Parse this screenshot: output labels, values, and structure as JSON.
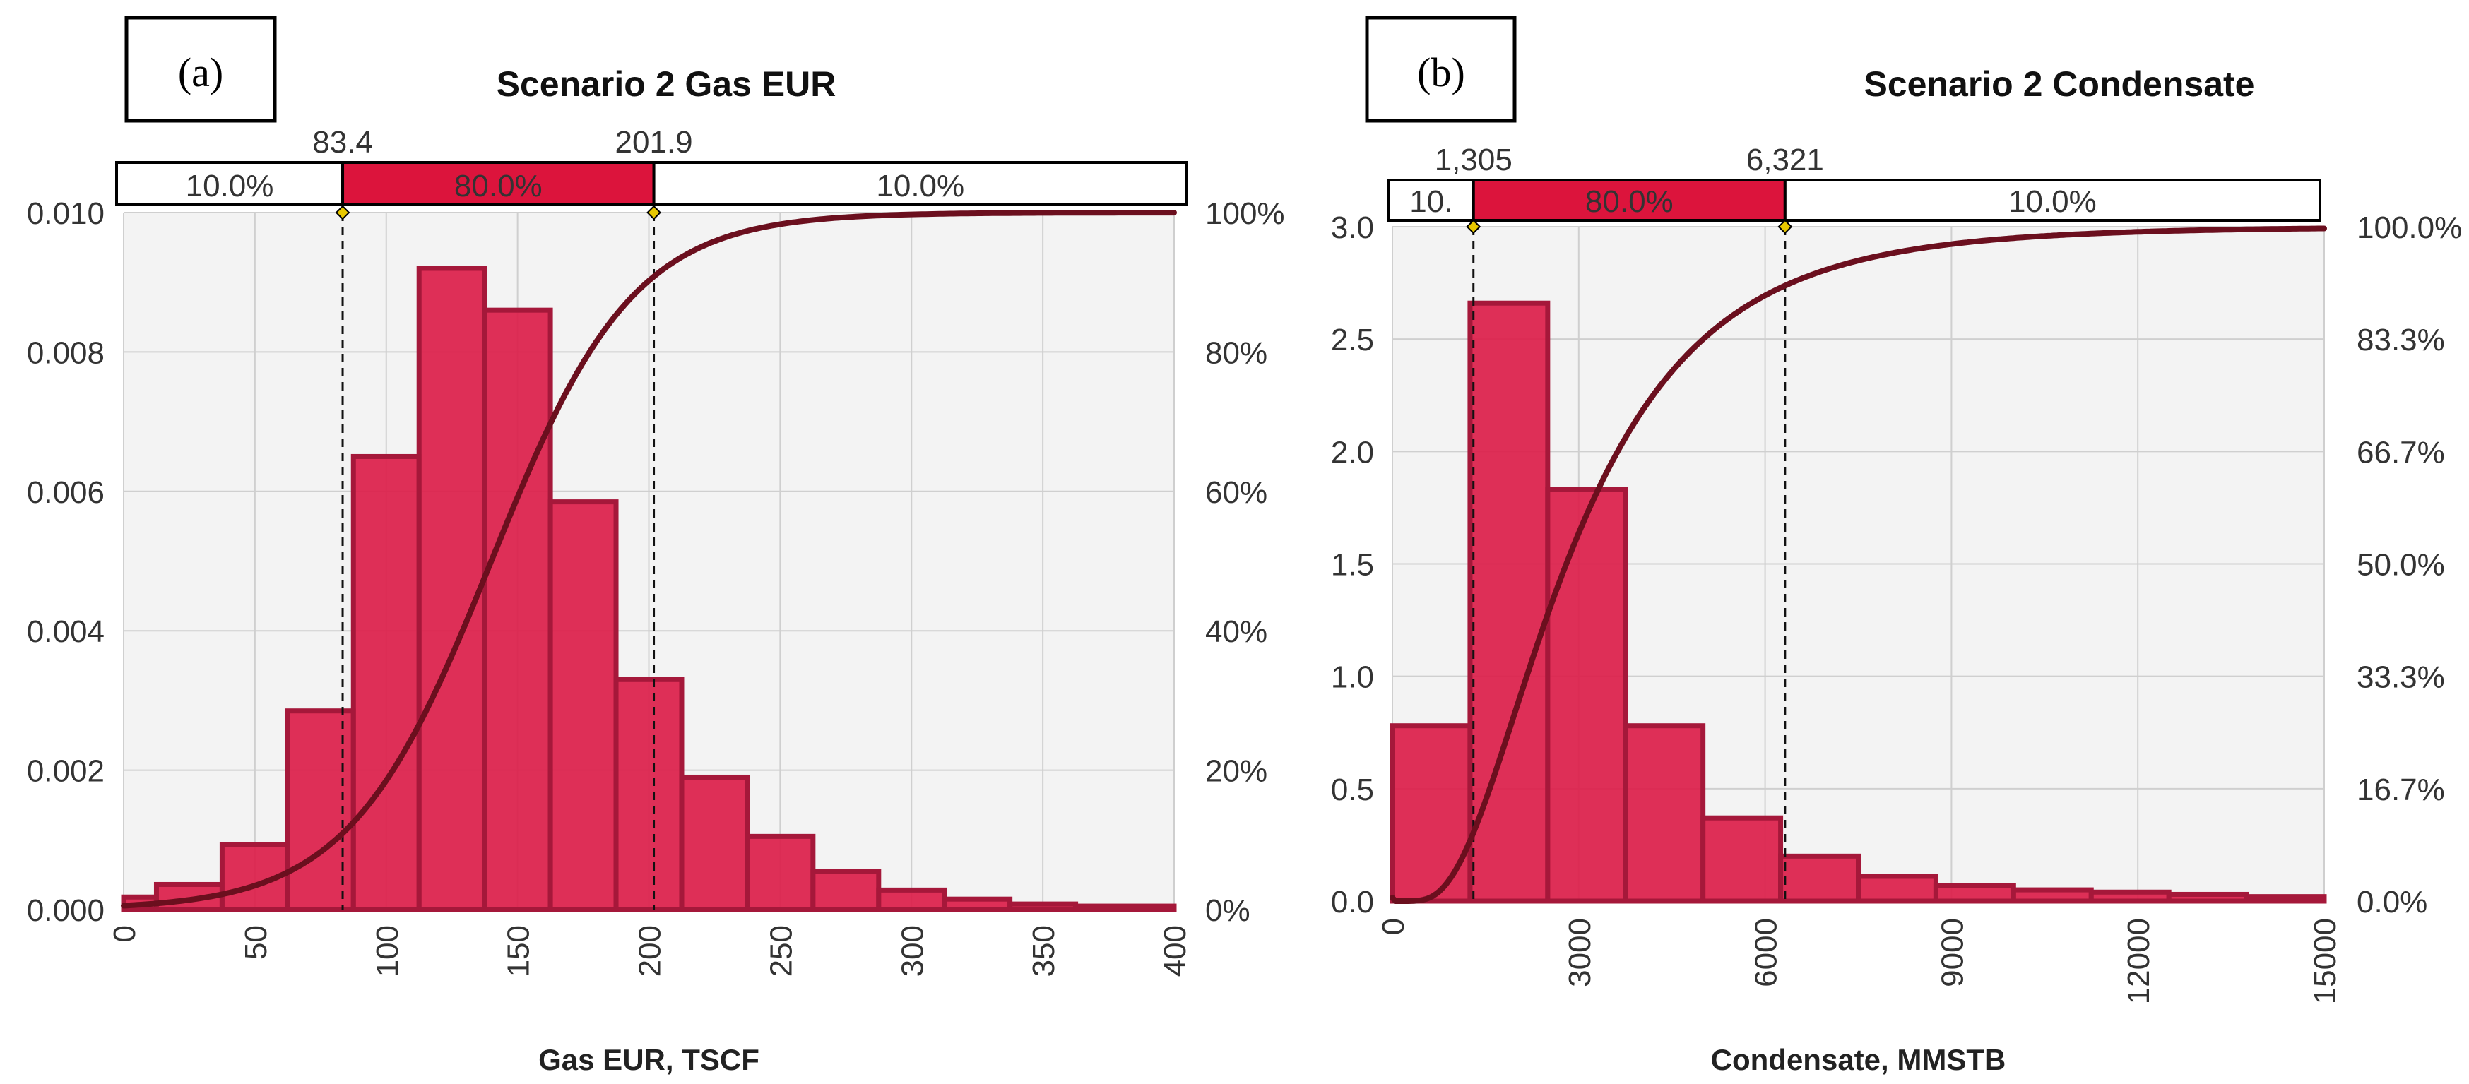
{
  "colors": {
    "bar_fill": "#dc1e4a",
    "bar_edge": "#a5183a",
    "cdf_line": "#6b0f1e",
    "band_fill": "#dc143c",
    "plot_bg": "#f3f3f3",
    "grid": "#cfcfcf",
    "axis_text": "#333333"
  },
  "chart_data": [
    {
      "panel_label": "(a)",
      "type": "bar",
      "title": "Scenario 2 Gas EUR",
      "xlabel": "Gas EUR, TSCF",
      "ylabel": "",
      "xlim": [
        0,
        400
      ],
      "ylim": [
        0,
        0.01
      ],
      "x_ticks": [
        "0",
        "50",
        "100",
        "150",
        "200",
        "250",
        "300",
        "350",
        "400"
      ],
      "y_ticks": [
        "0.000",
        "0.002",
        "0.004",
        "0.006",
        "0.008",
        "0.010"
      ],
      "y2_ticks": [
        "0%",
        "20%",
        "40%",
        "60%",
        "80%",
        "100%"
      ],
      "bins": [
        {
          "x0": 0,
          "x1": 12.5,
          "value": 0.00018
        },
        {
          "x0": 12.5,
          "x1": 37.5,
          "value": 0.00036
        },
        {
          "x0": 37.5,
          "x1": 62.5,
          "value": 0.00093
        },
        {
          "x0": 62.5,
          "x1": 87.5,
          "value": 0.00285
        },
        {
          "x0": 87.5,
          "x1": 112.5,
          "value": 0.0065
        },
        {
          "x0": 112.5,
          "x1": 137.5,
          "value": 0.0092
        },
        {
          "x0": 137.5,
          "x1": 162.5,
          "value": 0.0086
        },
        {
          "x0": 162.5,
          "x1": 187.5,
          "value": 0.00585
        },
        {
          "x0": 187.5,
          "x1": 212.5,
          "value": 0.0033
        },
        {
          "x0": 212.5,
          "x1": 237.5,
          "value": 0.0019
        },
        {
          "x0": 237.5,
          "x1": 262.5,
          "value": 0.00105
        },
        {
          "x0": 262.5,
          "x1": 287.5,
          "value": 0.00055
        },
        {
          "x0": 287.5,
          "x1": 312.5,
          "value": 0.00028
        },
        {
          "x0": 312.5,
          "x1": 337.5,
          "value": 0.00015
        },
        {
          "x0": 337.5,
          "x1": 362.5,
          "value": 8e-05
        },
        {
          "x0": 362.5,
          "x1": 400,
          "value": 5e-05
        }
      ],
      "cdf": {
        "name": "Cumulative",
        "type": "logistic",
        "center": 140,
        "scale": 27,
        "axis": "right"
      },
      "percentile_markers": [
        {
          "value": 83.4,
          "label": "83.4"
        },
        {
          "value": 201.9,
          "label": "201.9"
        }
      ],
      "band": {
        "left": "10.0%",
        "middle": "80.0%",
        "right": "10.0%"
      }
    },
    {
      "panel_label": "(b)",
      "type": "bar",
      "title": "Scenario 2 Condensate",
      "xlabel": "Condensate, MMSTB",
      "ylabel": "",
      "xlim": [
        0,
        15000
      ],
      "ylim": [
        0,
        3.0
      ],
      "x_ticks": [
        "0",
        "3000",
        "6000",
        "9000",
        "12000",
        "15000"
      ],
      "y_ticks": [
        "0.0",
        "0.5",
        "1.0",
        "1.5",
        "2.0",
        "2.5",
        "3.0"
      ],
      "y2_ticks": [
        "0.0%",
        "16.7%",
        "33.3%",
        "50.0%",
        "66.7%",
        "83.3%",
        "100.0%"
      ],
      "bins": [
        {
          "x0": 0,
          "x1": 1250,
          "value": 0.78
        },
        {
          "x0": 1250,
          "x1": 2500,
          "value": 2.66
        },
        {
          "x0": 2500,
          "x1": 3750,
          "value": 1.83
        },
        {
          "x0": 3750,
          "x1": 5000,
          "value": 0.78
        },
        {
          "x0": 5000,
          "x1": 6250,
          "value": 0.37
        },
        {
          "x0": 6250,
          "x1": 7500,
          "value": 0.2
        },
        {
          "x0": 7500,
          "x1": 8750,
          "value": 0.11
        },
        {
          "x0": 8750,
          "x1": 10000,
          "value": 0.07
        },
        {
          "x0": 10000,
          "x1": 11250,
          "value": 0.05
        },
        {
          "x0": 11250,
          "x1": 12500,
          "value": 0.04
        },
        {
          "x0": 12500,
          "x1": 13750,
          "value": 0.03
        },
        {
          "x0": 13750,
          "x1": 15000,
          "value": 0.02
        }
      ],
      "cdf": {
        "name": "Cumulative",
        "type": "lognormal",
        "median": 2800,
        "sigma": 0.6,
        "axis": "right"
      },
      "percentile_markers": [
        {
          "value": 1305,
          "label": "1,305"
        },
        {
          "value": 6321,
          "label": "6,321"
        }
      ],
      "band": {
        "left": "10.",
        "middle": "80.0%",
        "right": "10.0%"
      }
    }
  ]
}
